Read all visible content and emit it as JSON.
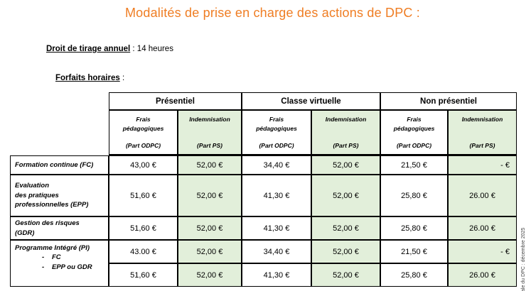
{
  "page": {
    "title": "Modalités de prise en charge des actions de DPC :"
  },
  "intro": {
    "droit_label": "Droit de tirage annuel",
    "droit_rest": " : 14 heures",
    "forfaits_label": "Forfaits horaires",
    "forfaits_rest": " :"
  },
  "colors": {
    "title_orange": "#ef7d23",
    "header_blue": "#bdd7ee",
    "indemnisation_green": "#e2efda",
    "label_salmon": "#fce4d6",
    "border_black": "#000000"
  },
  "table": {
    "groups": [
      "Présentiel",
      "Classe virtuelle",
      "Non présentiel"
    ],
    "subheader": {
      "fp_title": "Frais pédagogiques",
      "fp_part": "(Part ODPC)",
      "ind_title": "Indemnisation",
      "ind_part": "(Part PS)"
    },
    "rows": [
      {
        "label_lines": [
          "Formation continue (FC)"
        ],
        "values": [
          "43,00 €",
          "52,00 €",
          "34,40 €",
          "52,00 €",
          "21,50 €",
          "- €"
        ]
      },
      {
        "label_lines": [
          "Evaluation",
          "des pratiques",
          "professionnelles (EPP)"
        ],
        "values": [
          "51,60 €",
          "52,00 €",
          "41,30 €",
          "52,00 €",
          "25,80 €",
          "26.00 €"
        ]
      },
      {
        "label_lines": [
          "Gestion des risques",
          "(GDR)"
        ],
        "values": [
          "51,60 €",
          "52,00 €",
          "41,30 €",
          "52,00 €",
          "25,80 €",
          "26.00 €"
        ]
      },
      {
        "label_lines": [
          "Programme Intégré (PI)"
        ],
        "bullet_marker": "-",
        "bullets": [
          "FC",
          "EPP ou GDR"
        ],
        "subrows": [
          [
            "43.00 €",
            "52,00 €",
            "34,40 €",
            "52,00 €",
            "21,50 €",
            "- €"
          ],
          [
            "51,60 €",
            "52,00 €",
            "41,30 €",
            "52,00 €",
            "25,80 €",
            "26.00 €"
          ]
        ]
      }
    ]
  },
  "side_note": "ale du DPC : décembre 2025"
}
